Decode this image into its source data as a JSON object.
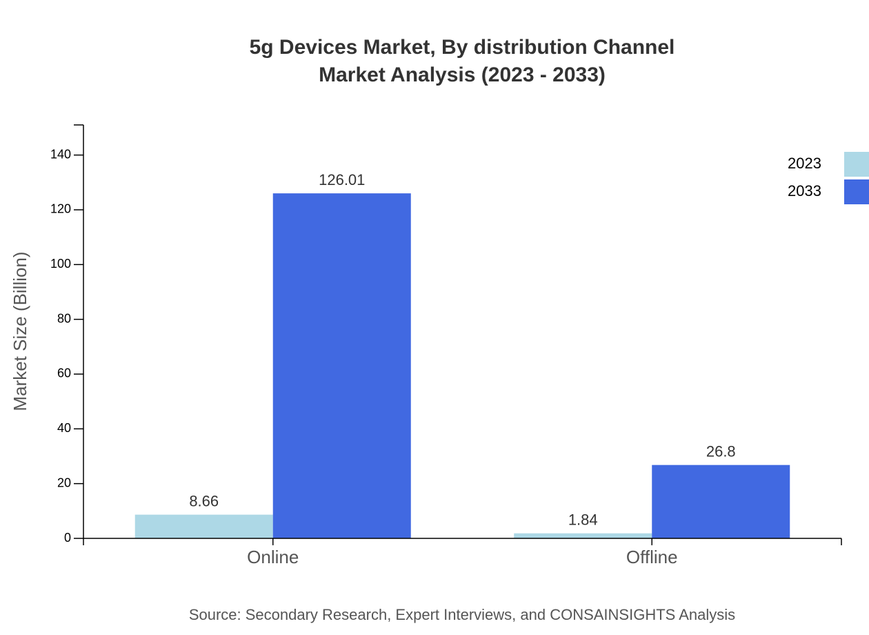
{
  "chart_data": {
    "type": "bar",
    "title": "5g Devices Market, By distribution Channel",
    "subtitle": "Market Analysis (2023 - 2033)",
    "y_label": "Market Size (Billion)",
    "source": "Source: Secondary Research, Expert Interviews, and CONSAINSIGHTS Analysis",
    "categories": [
      "Online",
      "Offline"
    ],
    "series": [
      {
        "name": "2023",
        "color": "#add8e6",
        "values": [
          8.66,
          1.84
        ]
      },
      {
        "name": "2033",
        "color": "#4169e1",
        "values": [
          126.01,
          26.8
        ]
      }
    ],
    "ylim": [
      0,
      151
    ],
    "yticks": [
      0,
      20,
      40,
      60,
      80,
      100,
      120,
      140
    ],
    "legend": "top-right"
  }
}
